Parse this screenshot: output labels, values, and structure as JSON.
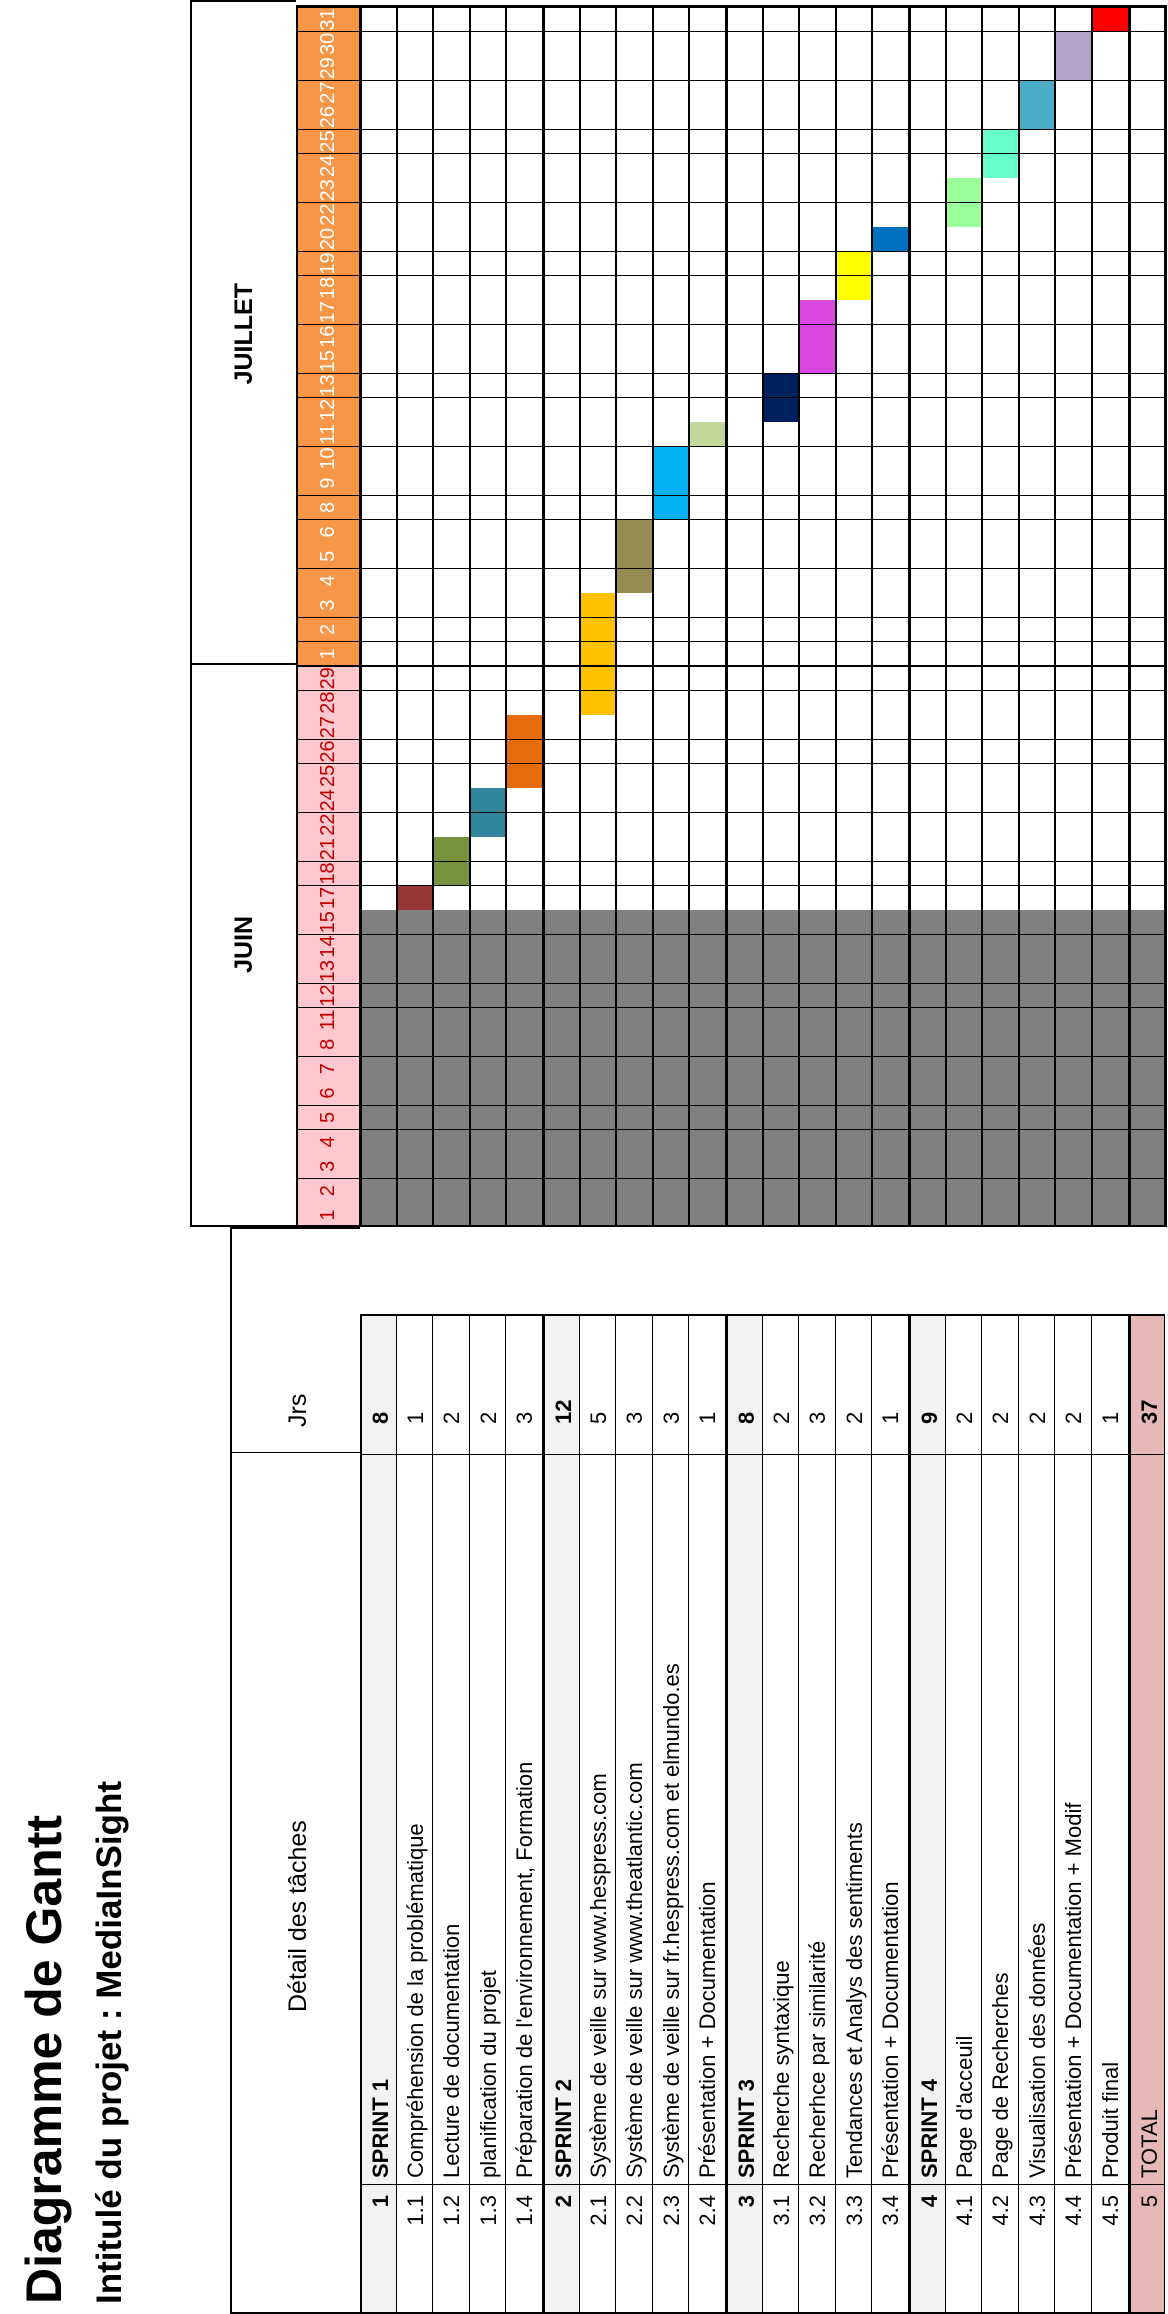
{
  "title": "Diagramme de Gantt",
  "project_label": "Intitulé du projet :  MediaInSight",
  "headers": {
    "tasks": "Détail des tâches",
    "days": "Jrs"
  },
  "months": [
    {
      "name": "JUIN",
      "days": [
        1,
        2,
        3,
        4,
        5,
        6,
        7,
        8,
        11,
        12,
        13,
        14,
        15,
        17,
        18,
        21,
        22,
        24,
        25,
        26,
        27,
        28,
        29
      ]
    },
    {
      "name": "JUILLET",
      "days": [
        1,
        2,
        3,
        4,
        5,
        6,
        8,
        9,
        10,
        11,
        12,
        13,
        15,
        16,
        17,
        18,
        19,
        20,
        22,
        23,
        24,
        25,
        26,
        27,
        29,
        30,
        31
      ]
    }
  ],
  "colors": {
    "june_header": "#ffc7ce",
    "july_header": "#f79646",
    "blocked": "#808080",
    "total_row": "#e6b8b7",
    "sprint_row": "#f2f2f2"
  },
  "rows": [
    {
      "num": "1",
      "label": "SPRINT 1",
      "days": "8",
      "type": "sprint"
    },
    {
      "num": "1.1",
      "label": "Compréhension de la problématique",
      "days": "1",
      "bar": {
        "from": "06-17",
        "to": "06-17",
        "color": "#953735"
      }
    },
    {
      "num": "1.2",
      "label": "Lecture de documentation",
      "days": "2",
      "bar": {
        "from": "06-18",
        "to": "06-21",
        "color": "#77933c"
      }
    },
    {
      "num": "1.3",
      "label": "planification du projet",
      "days": "2",
      "bar": {
        "from": "06-22",
        "to": "06-24",
        "color": "#31859c"
      }
    },
    {
      "num": "1.4",
      "label": "Préparation de l'environnement, Formation",
      "days": "3",
      "bar": {
        "from": "06-25",
        "to": "06-27",
        "color": "#e46c0a"
      }
    },
    {
      "num": "2",
      "label": "SPRINT 2",
      "days": "12",
      "type": "sprint"
    },
    {
      "num": "2.1",
      "label": "Système de veille sur www.hespress.com",
      "days": "5",
      "bar": {
        "from": "06-28",
        "to": "07-03",
        "color": "#ffc000"
      }
    },
    {
      "num": "2.2",
      "label": "Système de veille sur www.theatlantic.com",
      "days": "3",
      "bar": {
        "from": "07-04",
        "to": "07-06",
        "color": "#948a54"
      }
    },
    {
      "num": "2.3",
      "label": "Système de veille sur fr.hespress.com et elmundo.es",
      "days": "3",
      "bar": {
        "from": "07-08",
        "to": "07-10",
        "color": "#00b0f0"
      }
    },
    {
      "num": "2.4",
      "label": "Présentation + Documentation",
      "days": "1",
      "bar": {
        "from": "07-11",
        "to": "07-11",
        "color": "#c4d79b"
      }
    },
    {
      "num": "3",
      "label": "SPRINT 3",
      "days": "8",
      "type": "sprint"
    },
    {
      "num": "3.1",
      "label": "Recherche syntaxique",
      "days": "2",
      "bar": {
        "from": "07-12",
        "to": "07-13",
        "color": "#002060"
      }
    },
    {
      "num": "3.2",
      "label": "Recherhce par similarité",
      "days": "3",
      "bar": {
        "from": "07-15",
        "to": "07-17",
        "color": "#d946e0"
      }
    },
    {
      "num": "3.3",
      "label": "Tendances et Analys des sentiments",
      "days": "2",
      "bar": {
        "from": "07-18",
        "to": "07-19",
        "color": "#ffff00"
      }
    },
    {
      "num": "3.4",
      "label": "Présentation + Documentation",
      "days": "1",
      "bar": {
        "from": "07-20",
        "to": "07-20",
        "color": "#0070c0"
      }
    },
    {
      "num": "4",
      "label": "SPRINT 4",
      "days": "9",
      "type": "sprint"
    },
    {
      "num": "4.1",
      "label": "Page d'acceuil",
      "days": "2",
      "bar": {
        "from": "07-22",
        "to": "07-23",
        "color": "#99ff99"
      }
    },
    {
      "num": "4.2",
      "label": "Page de Recherches",
      "days": "2",
      "bar": {
        "from": "07-24",
        "to": "07-25",
        "color": "#66ffcc"
      }
    },
    {
      "num": "4.3",
      "label": "Visualisation des données",
      "days": "2",
      "bar": {
        "from": "07-26",
        "to": "07-27",
        "color": "#4bacc6"
      }
    },
    {
      "num": "4.4",
      "label": "Présentation + Documentation + Modif",
      "days": "2",
      "bar": {
        "from": "07-29",
        "to": "07-30",
        "color": "#b3a2c7"
      }
    },
    {
      "num": "4.5",
      "label": "Produit final",
      "days": "1",
      "bar": {
        "from": "07-31",
        "to": "07-31",
        "color": "#ff0000"
      }
    },
    {
      "num": "5",
      "label": "TOTAL",
      "days": "37",
      "type": "total"
    }
  ],
  "blocked_period": {
    "from": "06-01",
    "to": "06-15"
  }
}
